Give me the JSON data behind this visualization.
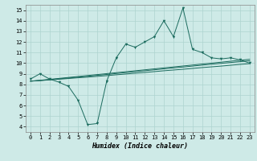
{
  "xlabel": "Humidex (Indice chaleur)",
  "xlim": [
    -0.5,
    23.5
  ],
  "ylim": [
    3.5,
    15.5
  ],
  "xticks": [
    0,
    1,
    2,
    3,
    4,
    5,
    6,
    7,
    8,
    9,
    10,
    11,
    12,
    13,
    14,
    15,
    16,
    17,
    18,
    19,
    20,
    21,
    22,
    23
  ],
  "yticks": [
    4,
    5,
    6,
    7,
    8,
    9,
    10,
    11,
    12,
    13,
    14,
    15
  ],
  "bg_color": "#ceeae7",
  "line_color": "#1b6b5e",
  "grid_color": "#aed4d0",
  "main_line": [
    8.5,
    9.0,
    8.5,
    8.2,
    7.8,
    6.5,
    4.2,
    4.3,
    8.3,
    10.5,
    11.8,
    11.5,
    12.0,
    12.5,
    14.0,
    12.5,
    15.2,
    11.3,
    11.0,
    10.5,
    10.4,
    10.5,
    10.3,
    10.0
  ],
  "reg_line1": [
    8.3,
    8.35,
    8.42,
    8.48,
    8.55,
    8.62,
    8.68,
    8.75,
    8.82,
    8.9,
    8.97,
    9.05,
    9.12,
    9.2,
    9.28,
    9.35,
    9.42,
    9.5,
    9.58,
    9.65,
    9.72,
    9.8,
    9.88,
    9.95
  ],
  "reg_line2": [
    8.3,
    8.36,
    8.44,
    8.52,
    8.6,
    8.68,
    8.76,
    8.85,
    8.93,
    9.02,
    9.1,
    9.19,
    9.28,
    9.37,
    9.46,
    9.55,
    9.63,
    9.72,
    9.81,
    9.9,
    9.98,
    10.06,
    10.14,
    10.22
  ],
  "reg_line3": [
    8.3,
    8.38,
    8.47,
    8.56,
    8.65,
    8.74,
    8.83,
    8.92,
    9.01,
    9.1,
    9.19,
    9.28,
    9.37,
    9.46,
    9.55,
    9.64,
    9.73,
    9.82,
    9.91,
    10.0,
    10.09,
    10.18,
    10.27,
    10.36
  ]
}
